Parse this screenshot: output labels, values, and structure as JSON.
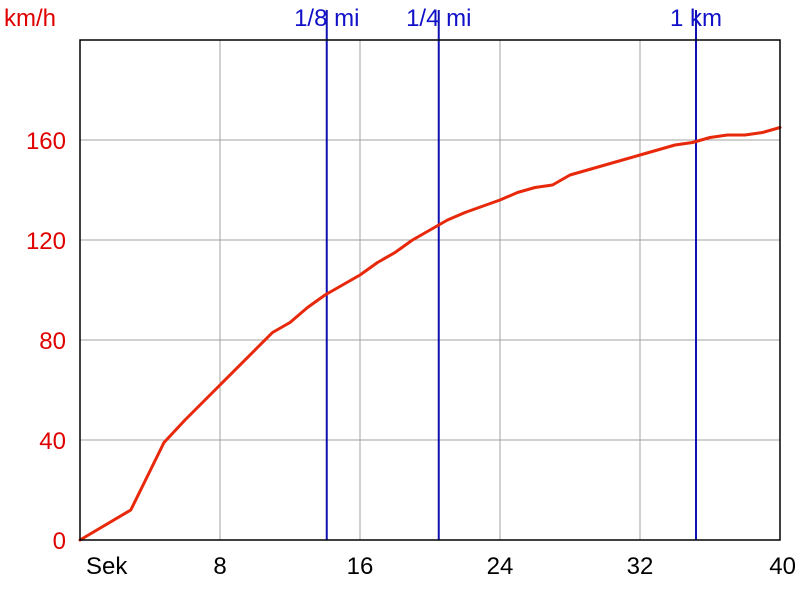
{
  "chart_data": {
    "type": "line",
    "x_unit_label": "Sek",
    "y_unit_label": "km/h",
    "xlim": [
      0,
      40
    ],
    "ylim": [
      0,
      200
    ],
    "x_ticks": [
      8,
      16,
      24,
      32,
      40
    ],
    "x_tick_labels": [
      "8",
      "16",
      "24",
      "32",
      "40"
    ],
    "y_ticks": [
      0,
      40,
      80,
      120,
      160
    ],
    "y_tick_labels": [
      "0",
      "40",
      "80",
      "120",
      "160"
    ],
    "grid": true,
    "markers": [
      {
        "label": "1/8 mi",
        "x": 14.1
      },
      {
        "label": "1/4 mi",
        "x": 20.5
      },
      {
        "label": "1 km",
        "x": 35.2
      }
    ],
    "series": [
      {
        "x": [
          0,
          2.9,
          4.8,
          6.0,
          8.0,
          10.0,
          11.0,
          12.0,
          13.0,
          14.0,
          16.0,
          17.0,
          18.0,
          19.0,
          20.0,
          21.0,
          22.0,
          24.0,
          25.0,
          26.0,
          27.0,
          28.0,
          29.0,
          30.0,
          31.0,
          32.0,
          33.0,
          34.0,
          35.0,
          36.0,
          37.0,
          38.0,
          39.0,
          40.0
        ],
        "y": [
          0,
          12,
          39,
          48,
          62,
          76,
          83,
          87,
          93,
          98,
          106,
          111,
          115,
          120,
          124,
          128,
          131,
          136,
          139,
          141,
          142,
          146,
          148,
          150,
          152,
          154,
          156,
          158,
          159,
          161,
          162,
          162,
          163,
          165
        ]
      }
    ],
    "colors": {
      "series": "#e8280a",
      "markers": "#1010b0",
      "y_labels": "#e00000",
      "x_labels": "#000000",
      "grid": "#a0a0a0"
    }
  }
}
